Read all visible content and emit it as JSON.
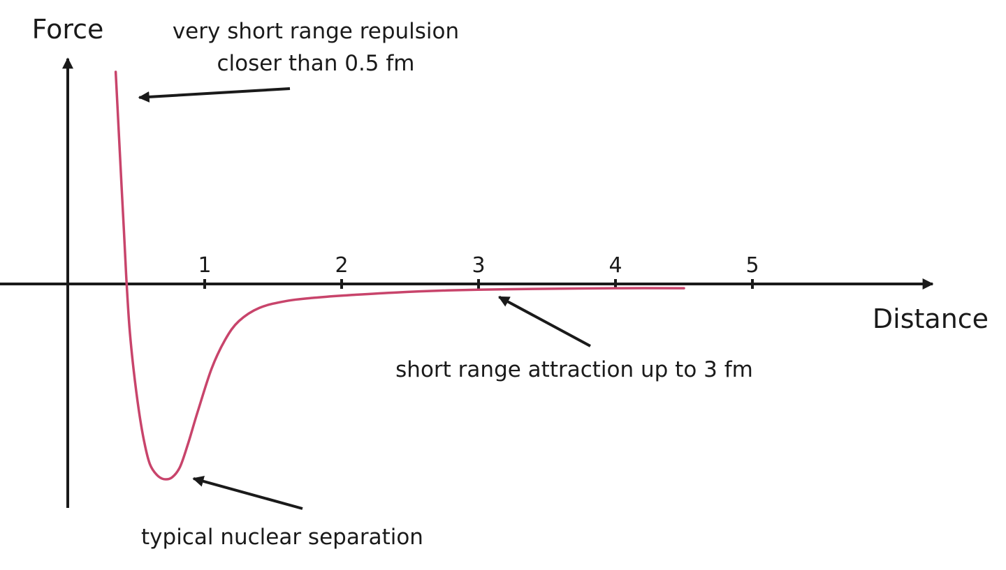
{
  "chart_data": {
    "type": "line",
    "xlabel": "Distance",
    "ylabel": "Force",
    "xticks": [
      1,
      2,
      3,
      4,
      5
    ],
    "xlim": [
      -0.5,
      6.3
    ],
    "ylim": [
      -3.8,
      4.3
    ],
    "grid": false,
    "legend": "none",
    "series": [
      {
        "color": "#c8446b",
        "points": [
          [
            0.35,
            4.0
          ],
          [
            0.37,
            3.0
          ],
          [
            0.39,
            2.0
          ],
          [
            0.41,
            1.0
          ],
          [
            0.42,
            0.5
          ],
          [
            0.43,
            0.0
          ],
          [
            0.45,
            -0.8
          ],
          [
            0.48,
            -1.6
          ],
          [
            0.52,
            -2.4
          ],
          [
            0.56,
            -3.0
          ],
          [
            0.6,
            -3.4
          ],
          [
            0.65,
            -3.6
          ],
          [
            0.7,
            -3.68
          ],
          [
            0.76,
            -3.65
          ],
          [
            0.82,
            -3.45
          ],
          [
            0.88,
            -3.0
          ],
          [
            0.95,
            -2.4
          ],
          [
            1.05,
            -1.6
          ],
          [
            1.15,
            -1.05
          ],
          [
            1.25,
            -0.7
          ],
          [
            1.4,
            -0.45
          ],
          [
            1.6,
            -0.32
          ],
          [
            1.8,
            -0.26
          ],
          [
            2.0,
            -0.22
          ],
          [
            2.4,
            -0.16
          ],
          [
            2.8,
            -0.12
          ],
          [
            3.2,
            -0.1
          ],
          [
            3.6,
            -0.09
          ],
          [
            4.0,
            -0.08
          ],
          [
            4.5,
            -0.08
          ]
        ]
      }
    ],
    "annotations": [
      {
        "lines": [
          "very short range repulsion",
          "closer than 0.5 fm"
        ],
        "target": [
          0.42,
          3.5
        ]
      },
      {
        "lines": [
          "short range attraction up to 3 fm"
        ],
        "target": [
          3.06,
          -0.12
        ]
      },
      {
        "lines": [
          "typical nuclear separation"
        ],
        "target": [
          0.82,
          -3.6
        ]
      }
    ]
  }
}
